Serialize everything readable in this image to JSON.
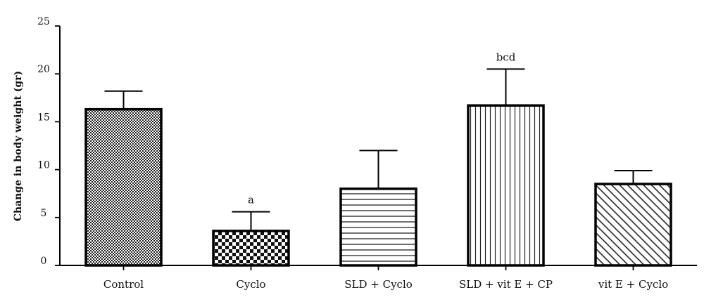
{
  "chart_data": {
    "type": "bar",
    "title": "",
    "xlabel": "",
    "ylabel": "Change in body weight (gr)",
    "ylim": [
      0,
      25
    ],
    "yticks": [
      "0",
      "5",
      "10",
      "15",
      "20",
      "25"
    ],
    "grid": false,
    "categories": [
      "Control",
      "Cyclo",
      "SLD + Cyclo",
      "SLD + vit E + CP",
      "vit E + Cyclo"
    ],
    "values": [
      16.3,
      3.6,
      8.0,
      16.7,
      8.5
    ],
    "errors": [
      1.9,
      2.0,
      4.0,
      3.8,
      1.4
    ],
    "annotations": [
      "",
      "a",
      "",
      "bcd",
      ""
    ],
    "patterns": [
      "fine-checker",
      "large-checker",
      "horizontal-lines",
      "vertical-lines",
      "diagonal-lines"
    ],
    "bar_color": "#000000"
  }
}
